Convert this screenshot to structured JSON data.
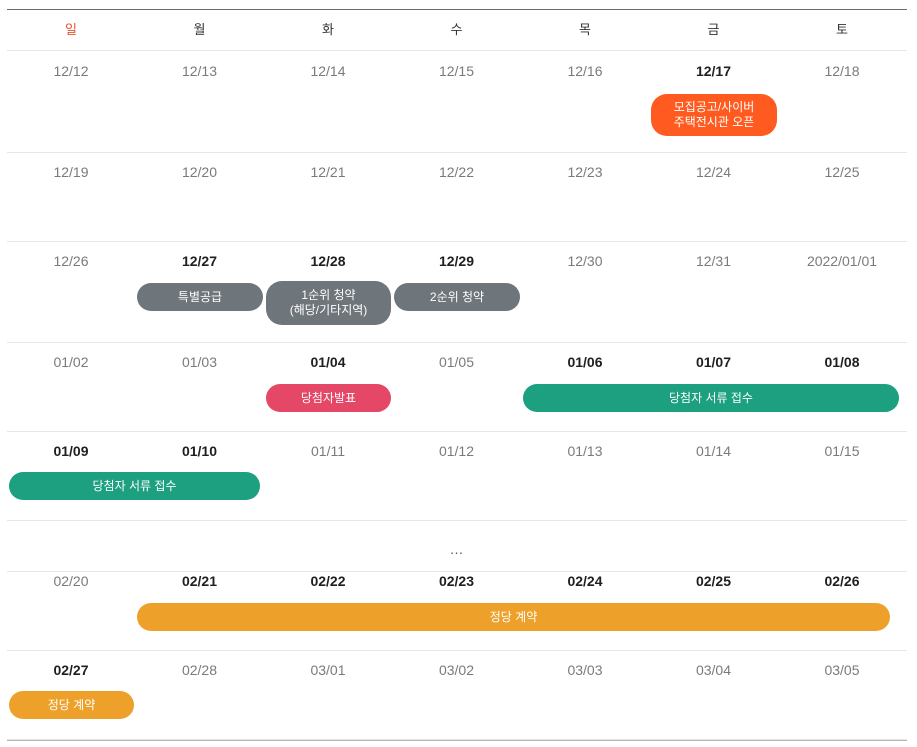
{
  "colors": {
    "sunday_header": "#e8502d",
    "orange": "#ff5a1f",
    "gray": "#6e757b",
    "red": "#e44866",
    "green": "#1ca080",
    "gold": "#eda12a"
  },
  "weekdays": [
    "일",
    "월",
    "화",
    "수",
    "목",
    "금",
    "토"
  ],
  "rows": [
    {
      "dates": [
        "12/12",
        "12/13",
        "12/14",
        "12/15",
        "12/16",
        "12/17",
        "12/18"
      ],
      "bold": [
        5
      ]
    },
    {
      "dates": [
        "12/19",
        "12/20",
        "12/21",
        "12/22",
        "12/23",
        "12/24",
        "12/25"
      ],
      "bold": []
    },
    {
      "dates": [
        "12/26",
        "12/27",
        "12/28",
        "12/29",
        "12/30",
        "12/31",
        "2022/01/01"
      ],
      "bold": [
        1,
        2,
        3
      ]
    },
    {
      "dates": [
        "01/02",
        "01/03",
        "01/04",
        "01/05",
        "01/06",
        "01/07",
        "01/08"
      ],
      "bold": [
        2,
        4,
        5,
        6
      ]
    },
    {
      "dates": [
        "01/09",
        "01/10",
        "01/11",
        "01/12",
        "01/13",
        "01/14",
        "01/15"
      ],
      "bold": [
        0,
        1
      ]
    },
    {
      "dates": [
        "02/20",
        "02/21",
        "02/22",
        "02/23",
        "02/24",
        "02/25",
        "02/26"
      ],
      "bold": [
        1,
        2,
        3,
        4,
        5,
        6
      ]
    },
    {
      "dates": [
        "02/27",
        "02/28",
        "03/01",
        "03/02",
        "03/03",
        "03/04",
        "03/05"
      ],
      "bold": [
        0
      ]
    }
  ],
  "ellipsis": "…",
  "events": [
    {
      "row": 0,
      "label": "모집공고/사이버\n주택전시관 오픈",
      "color": "orange"
    },
    {
      "row": 2,
      "label": "특별공급",
      "color": "gray"
    },
    {
      "row": 2,
      "label": "1순위 청약\n(해당/기타지역)",
      "color": "gray"
    },
    {
      "row": 2,
      "label": "2순위 청약",
      "color": "gray"
    },
    {
      "row": 3,
      "label": "당첨자발표",
      "color": "red"
    },
    {
      "row": 3,
      "label": "당첨자 서류 접수",
      "color": "green"
    },
    {
      "row": 4,
      "label": "당첨자 서류 접수",
      "color": "green"
    },
    {
      "row": 5,
      "label": "정당 계약",
      "color": "gold"
    },
    {
      "row": 6,
      "label": "정당 계약",
      "color": "gold"
    }
  ]
}
